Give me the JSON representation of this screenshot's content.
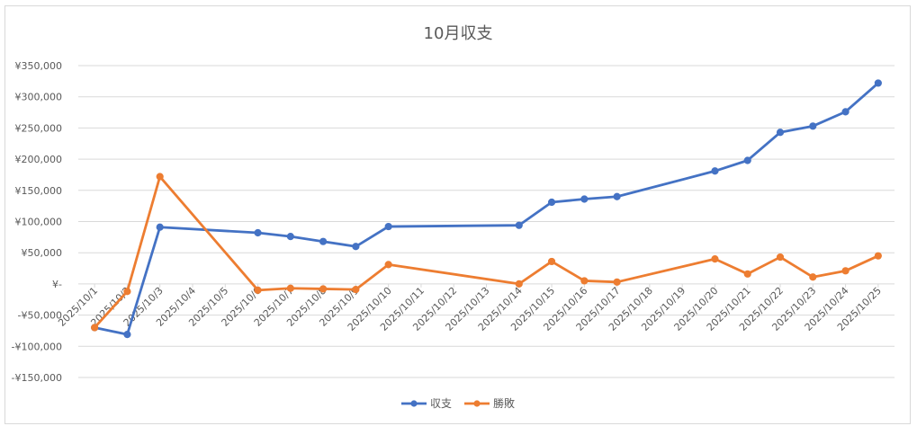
{
  "chart_data": {
    "type": "line",
    "title": "10月収支",
    "categories": [
      "2025/10/1",
      "2025/10/2",
      "2025/10/3",
      "2025/10/4",
      "2025/10/5",
      "2025/10/6",
      "2025/10/7",
      "2025/10/8",
      "2025/10/9",
      "2025/10/10",
      "2025/10/11",
      "2025/10/12",
      "2025/10/13",
      "2025/10/14",
      "2025/10/15",
      "2025/10/16",
      "2025/10/17",
      "2025/10/18",
      "2025/10/19",
      "2025/10/20",
      "2025/10/21",
      "2025/10/22",
      "2025/10/23",
      "2025/10/24",
      "2025/10/25"
    ],
    "yticks": [
      "¥350,000",
      "¥300,000",
      "¥250,000",
      "¥200,000",
      "¥150,000",
      "¥100,000",
      "¥50,000",
      "¥-",
      "-¥50,000",
      "-¥100,000",
      "-¥150,000"
    ],
    "ylim": [
      -150000,
      350000
    ],
    "grid": true,
    "legend_position": "bottom",
    "series": [
      {
        "name": "収支",
        "color": "#4472c4",
        "points": [
          {
            "x": 0,
            "y": -70000
          },
          {
            "x": 1,
            "y": -81000
          },
          {
            "x": 2,
            "y": 91000
          },
          {
            "x": 5,
            "y": 82000
          },
          {
            "x": 6,
            "y": 76000
          },
          {
            "x": 7,
            "y": 68000
          },
          {
            "x": 8,
            "y": 60000
          },
          {
            "x": 9,
            "y": 92000
          },
          {
            "x": 13,
            "y": 94000
          },
          {
            "x": 14,
            "y": 131000
          },
          {
            "x": 15,
            "y": 136000
          },
          {
            "x": 16,
            "y": 140000
          },
          {
            "x": 19,
            "y": 181000
          },
          {
            "x": 20,
            "y": 198000
          },
          {
            "x": 21,
            "y": 243000
          },
          {
            "x": 22,
            "y": 253000
          },
          {
            "x": 23,
            "y": 276000
          },
          {
            "x": 24,
            "y": 322000
          }
        ]
      },
      {
        "name": "勝敗",
        "color": "#ed7d31",
        "points": [
          {
            "x": 0,
            "y": -70000
          },
          {
            "x": 1,
            "y": -12000
          },
          {
            "x": 2,
            "y": 172000
          },
          {
            "x": 5,
            "y": -10000
          },
          {
            "x": 6,
            "y": -7000
          },
          {
            "x": 7,
            "y": -8000
          },
          {
            "x": 8,
            "y": -9000
          },
          {
            "x": 9,
            "y": 31000
          },
          {
            "x": 13,
            "y": 0
          },
          {
            "x": 14,
            "y": 36000
          },
          {
            "x": 15,
            "y": 5000
          },
          {
            "x": 16,
            "y": 3000
          },
          {
            "x": 19,
            "y": 40000
          },
          {
            "x": 20,
            "y": 16000
          },
          {
            "x": 21,
            "y": 43000
          },
          {
            "x": 22,
            "y": 11000
          },
          {
            "x": 23,
            "y": 21000
          },
          {
            "x": 24,
            "y": 45000
          }
        ]
      }
    ]
  }
}
